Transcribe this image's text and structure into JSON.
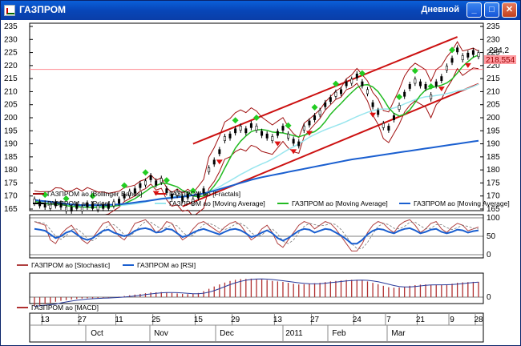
{
  "window": {
    "title": "ГАЗПРОМ",
    "period": "Дневной",
    "minimize_glyph": "_",
    "restore_glyph": "□",
    "close_glyph": "✕"
  },
  "colors": {
    "price": "#000000",
    "bollinger": "#a01010",
    "fractal_up": "#22cc22",
    "fractal_down": "#dd1111",
    "ma_fast": "#22bb22",
    "ma_slow": "#99e6ee",
    "ma_long": "#1a5fd0",
    "channel": "#cc1111",
    "stochastic": "#b04040",
    "rsi": "#1a5fd0",
    "macd": "#b03030"
  },
  "chart_data": [
    {
      "type": "line",
      "ylim": [
        165,
        235
      ],
      "yticks": [
        "235",
        "230",
        "225",
        "220",
        "215",
        "210",
        "205",
        "200",
        "195",
        "190",
        "185",
        "180",
        "175",
        "170",
        "165"
      ],
      "last_value_label": "224,2",
      "marker_label": "218,554",
      "legend": [
        "ГАЗПРОМ ао [Bollinger Bands]",
        "ГАЗПРОМ ао [Fractals]",
        "ГАЗПРОМ ао [Price]",
        "ГАЗПРОМ ао [Moving Average]",
        "ГАЗПРОМ ао [Moving Average]",
        "ГАЗПРОМ ао [Moving Average]"
      ],
      "price_close": [
        168,
        167,
        166.5,
        166,
        167,
        166.5,
        165,
        165,
        166,
        165,
        166.5,
        166,
        165.5,
        166,
        166,
        167,
        168,
        170,
        171,
        172,
        174,
        175,
        177,
        175,
        176,
        172,
        170,
        171,
        169,
        170,
        168,
        170,
        172,
        180,
        183,
        187,
        192,
        193,
        195,
        196,
        195,
        197,
        196,
        194,
        193,
        192,
        194,
        196,
        193,
        191,
        190,
        196,
        198,
        200,
        202,
        205,
        207,
        209,
        210,
        213,
        214,
        216,
        213,
        210,
        205,
        202,
        197,
        196,
        200,
        204,
        209,
        212,
        214,
        213,
        212,
        208,
        213,
        215,
        219,
        222,
        226,
        223,
        224,
        225,
        224.2
      ],
      "ma_long": [
        168.5,
        168.2,
        168,
        167.8,
        167.5,
        167.3,
        167,
        166.8,
        166.6,
        166.5,
        166.5,
        166.5,
        166.5,
        166.5,
        166.6,
        166.7,
        166.8,
        167,
        167.2,
        167.5,
        167.8,
        168,
        168.3,
        168.6,
        168.9,
        169.1,
        169.3,
        169.5,
        169.7,
        170,
        170.3,
        170.6,
        171,
        171.5,
        172,
        172.6,
        173.2,
        173.8,
        174.4,
        175,
        175.6,
        176.2,
        176.7,
        177.2,
        177.6,
        178,
        178.4,
        178.8,
        179.2,
        179.6,
        180,
        180.4,
        180.8,
        181.2,
        181.6,
        182,
        182.4,
        182.8,
        183.2,
        183.6,
        184,
        184.3,
        184.6,
        184.9,
        185.2,
        185.5,
        185.8,
        186.1,
        186.4,
        186.7,
        187,
        187.3,
        187.6,
        187.9,
        188.2,
        188.5,
        188.8,
        189.1,
        189.4,
        189.7,
        190,
        190.3,
        190.6,
        190.9,
        191.2
      ],
      "stochastic": [
        90,
        85,
        80,
        40,
        30,
        55,
        70,
        80,
        60,
        40,
        30,
        45,
        65,
        85,
        90,
        70,
        50,
        40,
        60,
        85,
        90,
        95,
        80,
        60,
        70,
        90,
        85,
        60,
        40,
        50,
        70,
        85,
        90,
        80,
        70,
        60,
        75,
        85,
        90,
        80,
        60,
        40,
        50,
        70,
        80,
        60,
        30,
        20,
        40,
        60,
        80,
        90,
        85,
        70,
        80,
        90,
        85,
        70,
        50,
        30,
        10,
        10,
        30,
        60,
        80,
        90,
        85,
        70,
        60,
        80,
        90,
        95,
        80,
        60,
        70,
        85,
        90,
        70,
        60,
        75,
        85,
        80,
        65,
        70,
        75
      ],
      "rsi": [
        70,
        68,
        65,
        55,
        45,
        50,
        60,
        65,
        55,
        45,
        40,
        45,
        55,
        65,
        68,
        60,
        55,
        50,
        55,
        65,
        70,
        72,
        68,
        60,
        62,
        70,
        68,
        58,
        48,
        52,
        60,
        66,
        70,
        65,
        60,
        55,
        62,
        68,
        70,
        66,
        58,
        48,
        52,
        60,
        66,
        58,
        45,
        38,
        45,
        55,
        65,
        70,
        68,
        60,
        65,
        70,
        68,
        60,
        52,
        42,
        30,
        30,
        40,
        55,
        65,
        70,
        68,
        62,
        58,
        65,
        70,
        72,
        66,
        58,
        62,
        68,
        70,
        62,
        58,
        62,
        68,
        66,
        60,
        64,
        66
      ],
      "macd": [
        -4,
        -3.5,
        -3,
        -2.5,
        -2,
        -1.6,
        -1.3,
        -1,
        -0.8,
        -0.6,
        -0.5,
        -0.5,
        -0.4,
        -0.3,
        -0.2,
        0,
        0.2,
        0.5,
        0.8,
        1.1,
        1.4,
        1.7,
        2,
        2.1,
        2.2,
        2,
        1.8,
        1.6,
        1.4,
        1.3,
        1.4,
        1.8,
        2.6,
        3.6,
        4.6,
        5.5,
        6.3,
        7,
        7.5,
        7.8,
        7.9,
        8,
        7.9,
        7.7,
        7.4,
        7,
        6.8,
        6.6,
        6.2,
        5.8,
        5.5,
        5.6,
        5.8,
        6,
        6.2,
        6.5,
        6.8,
        7,
        7.2,
        7.4,
        7.5,
        7.5,
        7.2,
        6.8,
        6.2,
        5.6,
        4.9,
        4.3,
        4.1,
        4.2,
        4.5,
        4.9,
        5.2,
        5.4,
        5.5,
        5.3,
        5.2,
        5.3,
        5.5,
        5.8,
        6.2,
        6.4,
        6.5,
        6.6,
        6.6
      ],
      "osc_ticks": [
        "100",
        "50",
        "0"
      ],
      "macd_ticks": [
        "0"
      ],
      "osc_legend": [
        "ГАЗПРОМ ао [Stochastic]",
        "ГАЗПРОМ ао [RSI]"
      ],
      "macd_legend": [
        "ГАЗПРОМ ао [MACD]"
      ],
      "x_day_labels": [
        "13",
        "27",
        "11",
        "25",
        "15",
        "29",
        "13",
        "27",
        "24",
        "7",
        "21",
        "9",
        "28"
      ],
      "x_month_labels": [
        "Oct",
        "Nov",
        "Dec",
        "2011",
        "Feb",
        "Mar"
      ]
    }
  ]
}
